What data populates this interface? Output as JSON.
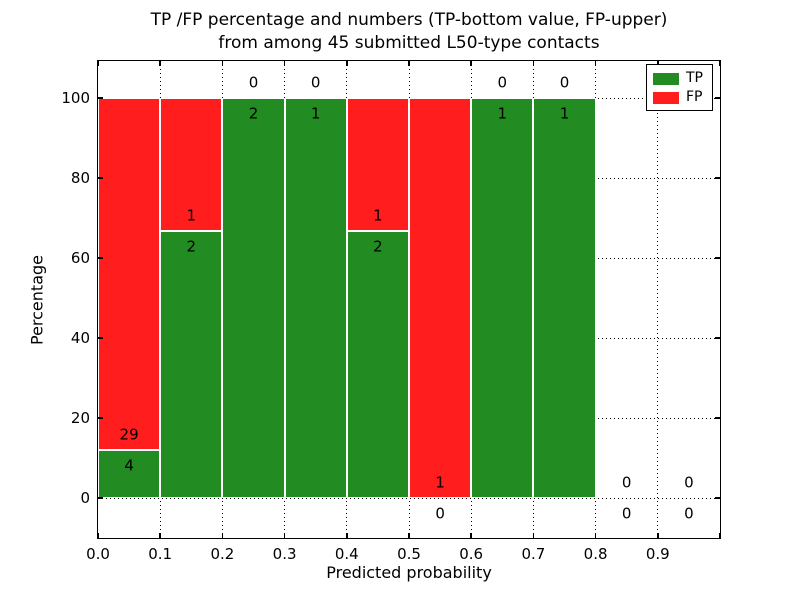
{
  "title": {
    "line1": "TP /FP percentage and numbers (TP-bottom value, FP-upper)",
    "line2": "from among 45 submitted L50-type contacts"
  },
  "axes": {
    "xlabel": "Predicted probability",
    "ylabel": "Percentage",
    "x_tick_labels": [
      "0.0",
      "0.1",
      "0.2",
      "0.3",
      "0.4",
      "0.5",
      "0.6",
      "0.7",
      "0.8",
      "0.9"
    ],
    "y_tick_labels": [
      "0",
      "20",
      "40",
      "60",
      "80",
      "100"
    ],
    "y_tick_values": [
      0,
      20,
      40,
      60,
      80,
      100
    ]
  },
  "legend": {
    "position": "upper right",
    "items": [
      {
        "label": "TP",
        "color": "#228B22"
      },
      {
        "label": "FP",
        "color": "#FF1D1D"
      }
    ]
  },
  "chart_data": {
    "type": "bar",
    "stacked": true,
    "title": "TP /FP percentage and numbers (TP-bottom value, FP-upper) from among 45 submitted L50-type contacts",
    "xlabel": "Predicted probability",
    "ylabel": "Percentage",
    "xlim": [
      0.0,
      1.0
    ],
    "ylim": [
      -10,
      109
    ],
    "grid": "dotted",
    "legend_position": "upper right",
    "bin_width": 0.1,
    "total_contacts": 45,
    "series": [
      {
        "name": "TP",
        "color": "#228B22",
        "role": "bottom"
      },
      {
        "name": "FP",
        "color": "#FF1D1D",
        "role": "top"
      }
    ],
    "bins": [
      {
        "x_start": 0.0,
        "x_end": 0.1,
        "tp_count": 4,
        "fp_count": 29,
        "tp_pct": 12.12,
        "fp_pct": 87.88
      },
      {
        "x_start": 0.1,
        "x_end": 0.2,
        "tp_count": 2,
        "fp_count": 1,
        "tp_pct": 66.67,
        "fp_pct": 33.33
      },
      {
        "x_start": 0.2,
        "x_end": 0.3,
        "tp_count": 2,
        "fp_count": 0,
        "tp_pct": 100,
        "fp_pct": 0
      },
      {
        "x_start": 0.3,
        "x_end": 0.4,
        "tp_count": 1,
        "fp_count": 0,
        "tp_pct": 100,
        "fp_pct": 0
      },
      {
        "x_start": 0.4,
        "x_end": 0.5,
        "tp_count": 2,
        "fp_count": 1,
        "tp_pct": 66.67,
        "fp_pct": 33.33
      },
      {
        "x_start": 0.5,
        "x_end": 0.6,
        "tp_count": 0,
        "fp_count": 1,
        "tp_pct": 0,
        "fp_pct": 100
      },
      {
        "x_start": 0.6,
        "x_end": 0.7,
        "tp_count": 1,
        "fp_count": 0,
        "tp_pct": 100,
        "fp_pct": 0
      },
      {
        "x_start": 0.7,
        "x_end": 0.8,
        "tp_count": 1,
        "fp_count": 0,
        "tp_pct": 100,
        "fp_pct": 0
      },
      {
        "x_start": 0.8,
        "x_end": 0.9,
        "tp_count": 0,
        "fp_count": 0,
        "tp_pct": 0,
        "fp_pct": 0
      },
      {
        "x_start": 0.9,
        "x_end": 1.0,
        "tp_count": 0,
        "fp_count": 0,
        "tp_pct": 0,
        "fp_pct": 0
      }
    ]
  }
}
